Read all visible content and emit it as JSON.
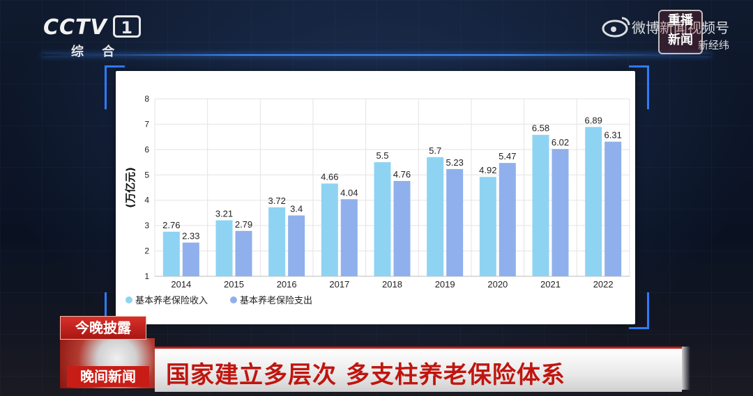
{
  "channel": {
    "logo": "CCTV",
    "number": "1",
    "name": "综 合"
  },
  "watermark": {
    "line1": "微博新闻视频号",
    "line2": "新经纬",
    "badge": "重播 新闻"
  },
  "lower_third": {
    "tag_top": "今晚披露",
    "tag_bottom": "晚间新闻",
    "headline": "国家建立多层次 多支柱养老保险体系"
  },
  "colors": {
    "income": "#8fd3f2",
    "expense": "#8fb0ec",
    "accent_red": "#c61b14",
    "frame_blue": "#2f7cff"
  },
  "chart_data": {
    "type": "bar",
    "ylabel": "(万亿元)",
    "ylim": [
      1,
      8
    ],
    "yticks": [
      1,
      2,
      3,
      4,
      5,
      6,
      7,
      8
    ],
    "categories": [
      "2014",
      "2015",
      "2016",
      "2017",
      "2018",
      "2019",
      "2020",
      "2021",
      "2022"
    ],
    "grid": true,
    "legend_position": "bottom-left",
    "series": [
      {
        "name": "基本养老保险收入",
        "color": "#8fd3f2",
        "values": [
          2.76,
          3.21,
          3.72,
          4.66,
          5.5,
          5.7,
          4.92,
          6.58,
          6.89
        ],
        "labels": [
          "2.76",
          "3.21",
          "3.72",
          "4.66",
          "5.5",
          "5.7",
          "4.92",
          "6.58",
          "6.89"
        ]
      },
      {
        "name": "基本养老保险支出",
        "color": "#8fb0ec",
        "values": [
          2.33,
          2.79,
          3.4,
          4.04,
          4.76,
          5.23,
          5.47,
          6.02,
          6.31
        ],
        "labels": [
          "2.33",
          "2.79",
          "3.4",
          "4.04",
          "4.76",
          "5.23",
          "5.47",
          "6.02",
          "6.31"
        ]
      }
    ]
  }
}
